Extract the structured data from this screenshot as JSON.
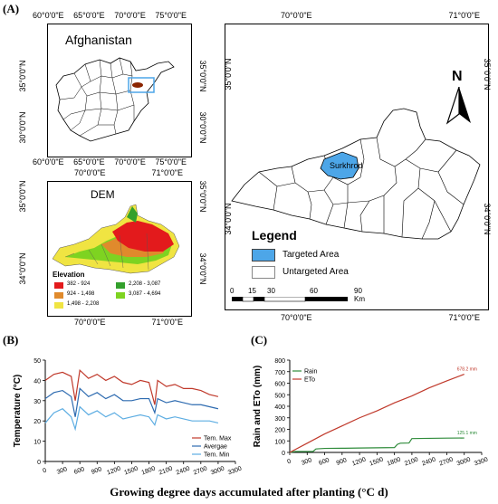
{
  "panels": {
    "a_label": "(A)",
    "b_label": "(B)",
    "c_label": "(C)"
  },
  "afghan_map": {
    "title": "Afghanistan",
    "top_ticks": [
      "60°0'0\"E",
      "65°0'0\"E",
      "70°0'0\"E",
      "75°0'0\"E"
    ],
    "bottom_ticks": [
      "60°0'0\"E",
      "65°0'0\"E",
      "70°0'0\"E",
      "75°0'0\"E"
    ],
    "left_ticks": [
      "35°0'0\"N",
      "30°0'0\"N"
    ],
    "right_ticks": [
      "35°0'0\"N",
      "30°0'0\"N"
    ]
  },
  "dem_map": {
    "title": "DEM",
    "top_ticks": [
      "70°0'0\"E",
      "71°0'0\"E"
    ],
    "bottom_ticks": [
      "70°0'0\"E",
      "71°0'0\"E"
    ],
    "left_ticks": [
      "35°0'0\"N",
      "34°0'0\"N"
    ],
    "right_ticks": [
      "35°0'0\"N",
      "34°0'0\"N"
    ],
    "legend_title": "Elevation",
    "legend": [
      {
        "label": "382 - 924",
        "color": "#e31a1c"
      },
      {
        "label": "2,208 - 3,087",
        "color": "#33a02c"
      },
      {
        "label": "924 - 1,498",
        "color": "#e08a2c"
      },
      {
        "label": "3,087 - 4,694",
        "color": "#7ed321"
      },
      {
        "label": "1,498 - 2,208",
        "color": "#f0e442"
      }
    ]
  },
  "main_map": {
    "top_ticks": [
      "70°0'0\"E",
      "71°0'0\"E"
    ],
    "bottom_ticks": [
      "70°0'0\"E",
      "71°0'0\"E"
    ],
    "left_ticks": [
      "35°0'0\"N",
      "34°0'0\"N"
    ],
    "right_ticks": [
      "35°0'0\"N",
      "34°0'0\"N"
    ],
    "north": "N",
    "district": "Surkhrod",
    "legend_title": "Legend",
    "legend_targeted": "Targeted Area",
    "legend_untargeted": "Untargeted Area",
    "targeted_color": "#4da6e8",
    "scale_ticks": [
      "0",
      "15",
      "30",
      "60",
      "90"
    ],
    "scale_unit": "Km"
  },
  "chart_data": [
    {
      "type": "line",
      "ylabel": "Temperature (°C)",
      "xlabel": "Growing degree days accumulated after planting (°C d)",
      "xlim": [
        0,
        3300
      ],
      "ylim": [
        0,
        50
      ],
      "x_ticks": [
        "0",
        "300",
        "600",
        "900",
        "1200",
        "1500",
        "1800",
        "2100",
        "2400",
        "2700",
        "3000",
        "3300"
      ],
      "y_ticks": [
        "0",
        "10",
        "20",
        "30",
        "40",
        "50"
      ],
      "legend_position": "bottom-right",
      "series": [
        {
          "name": "Tem. Max",
          "color": "#c0392b",
          "x": [
            0,
            150,
            300,
            450,
            520,
            600,
            750,
            900,
            1050,
            1200,
            1350,
            1500,
            1650,
            1800,
            1900,
            1950,
            2100,
            2250,
            2400,
            2550,
            2700,
            2850,
            3000
          ],
          "y": [
            40,
            43,
            44,
            42,
            30,
            45,
            41,
            43,
            40,
            42,
            39,
            38,
            40,
            39,
            28,
            40,
            37,
            38,
            36,
            36,
            35,
            33,
            32
          ]
        },
        {
          "name": "Avergae",
          "color": "#2e6bb0",
          "x": [
            0,
            150,
            300,
            450,
            520,
            600,
            750,
            900,
            1050,
            1200,
            1350,
            1500,
            1650,
            1800,
            1900,
            1950,
            2100,
            2250,
            2400,
            2550,
            2700,
            2850,
            3000
          ],
          "y": [
            31,
            34,
            35,
            32,
            22,
            36,
            32,
            34,
            31,
            33,
            30,
            30,
            31,
            31,
            24,
            31,
            29,
            30,
            29,
            28,
            28,
            27,
            26
          ]
        },
        {
          "name": "Tem. Min",
          "color": "#5dade2",
          "x": [
            0,
            150,
            300,
            450,
            520,
            600,
            750,
            900,
            1050,
            1200,
            1350,
            1500,
            1650,
            1800,
            1900,
            1950,
            2100,
            2250,
            2400,
            2550,
            2700,
            2850,
            3000
          ],
          "y": [
            19,
            24,
            26,
            22,
            16,
            27,
            23,
            25,
            22,
            24,
            21,
            22,
            23,
            22,
            18,
            23,
            21,
            22,
            21,
            20,
            20,
            20,
            19
          ]
        }
      ]
    },
    {
      "type": "line",
      "ylabel": "Rain and ETo (mm)",
      "xlabel": "Growing degree days accumulated after planting (°C d)",
      "xlim": [
        0,
        3300
      ],
      "ylim": [
        0,
        800
      ],
      "x_ticks": [
        "0",
        "300",
        "600",
        "900",
        "1200",
        "1500",
        "1800",
        "2100",
        "2400",
        "2700",
        "3000",
        "3300"
      ],
      "y_ticks": [
        "0",
        "100",
        "200",
        "300",
        "400",
        "500",
        "600",
        "700",
        "800"
      ],
      "legend_position": "top-left",
      "annotations": [
        "678.2 mm",
        "125.1 mm"
      ],
      "series": [
        {
          "name": "Rain",
          "color": "#2e8b3a",
          "x": [
            0,
            50,
            100,
            400,
            450,
            500,
            600,
            900,
            1200,
            1500,
            1800,
            1850,
            1900,
            2050,
            2100,
            2400,
            2700,
            3000
          ],
          "y": [
            0,
            5,
            8,
            8,
            30,
            32,
            35,
            36,
            38,
            40,
            42,
            70,
            80,
            82,
            120,
            122,
            124,
            125
          ]
        },
        {
          "name": "ETo",
          "color": "#c0392b",
          "x": [
            0,
            300,
            600,
            900,
            1200,
            1500,
            1800,
            2100,
            2400,
            2700,
            3000
          ],
          "y": [
            0,
            80,
            160,
            230,
            300,
            360,
            430,
            490,
            560,
            620,
            678
          ]
        }
      ]
    }
  ]
}
